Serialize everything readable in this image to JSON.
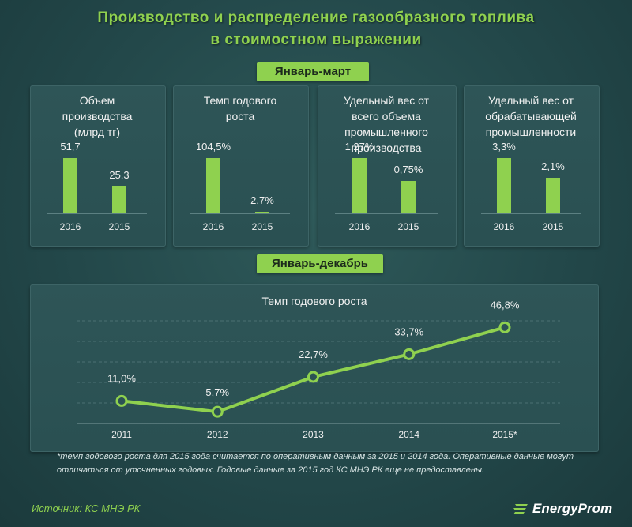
{
  "title_line1": "Производство  и распределение  газообразного  топлива",
  "title_line2": "в стоимостном  выражении",
  "section1_label": "Январь-март",
  "section2_label": "Январь-декабрь",
  "panels": [
    {
      "title": "Объем\nпроизводства\n(млрд тг)",
      "categories": [
        "2016",
        "2015"
      ],
      "values": [
        51.7,
        25.3
      ],
      "labels": [
        "51,7",
        "25,3"
      ]
    },
    {
      "title": "Темп годового\nроста",
      "categories": [
        "2016",
        "2015"
      ],
      "values": [
        104.5,
        2.7
      ],
      "labels": [
        "104,5%",
        "2,7%"
      ]
    },
    {
      "title": "Удельный вес от\nвсего объема\nпромышленного\nпроизводства",
      "categories": [
        "2016",
        "2015"
      ],
      "values": [
        1.27,
        0.75
      ],
      "labels": [
        "1,27%",
        "0,75%"
      ]
    },
    {
      "title": "Удельный вес от\nобрабатывающей\nпромышленности",
      "categories": [
        "2016",
        "2015"
      ],
      "values": [
        3.3,
        2.1
      ],
      "labels": [
        "3,3%",
        "2,1%"
      ]
    }
  ],
  "chart_data": [
    {
      "type": "bar",
      "title": "Объем производства (млрд тг)",
      "categories": [
        "2016",
        "2015"
      ],
      "values": [
        51.7,
        25.3
      ]
    },
    {
      "type": "bar",
      "title": "Темп годового роста",
      "categories": [
        "2016",
        "2015"
      ],
      "values": [
        104.5,
        2.7
      ]
    },
    {
      "type": "bar",
      "title": "Удельный вес от всего объема промышленного производства",
      "categories": [
        "2016",
        "2015"
      ],
      "values": [
        1.27,
        0.75
      ]
    },
    {
      "type": "bar",
      "title": "Удельный вес от обрабатывающей промышленности",
      "categories": [
        "2016",
        "2015"
      ],
      "values": [
        3.3,
        2.1
      ]
    },
    {
      "type": "line",
      "title": "Темп годового роста",
      "x": [
        "2011",
        "2012",
        "2013",
        "2014",
        "2015*"
      ],
      "values": [
        11.0,
        5.7,
        22.7,
        33.7,
        46.8
      ],
      "labels": [
        "11,0%",
        "5,7%",
        "22,7%",
        "33,7%",
        "46,8%"
      ],
      "ylim": [
        0,
        50
      ]
    }
  ],
  "line_title": "Темп годового роста",
  "footnote": "*темп годового роста для 2015 года считается по оперативным данным за 2015 и 2014 года. Оперативные данные могут отличаться от уточненных годовых. Годовые данные за 2015 год КС МНЭ РК еще не предоставлены.",
  "source": "Источник: КС МНЭ РК",
  "logo_text": "EnergyProm",
  "colors": {
    "accent": "#8fd14f",
    "background": "#23484a",
    "panel": "#2c5254"
  }
}
